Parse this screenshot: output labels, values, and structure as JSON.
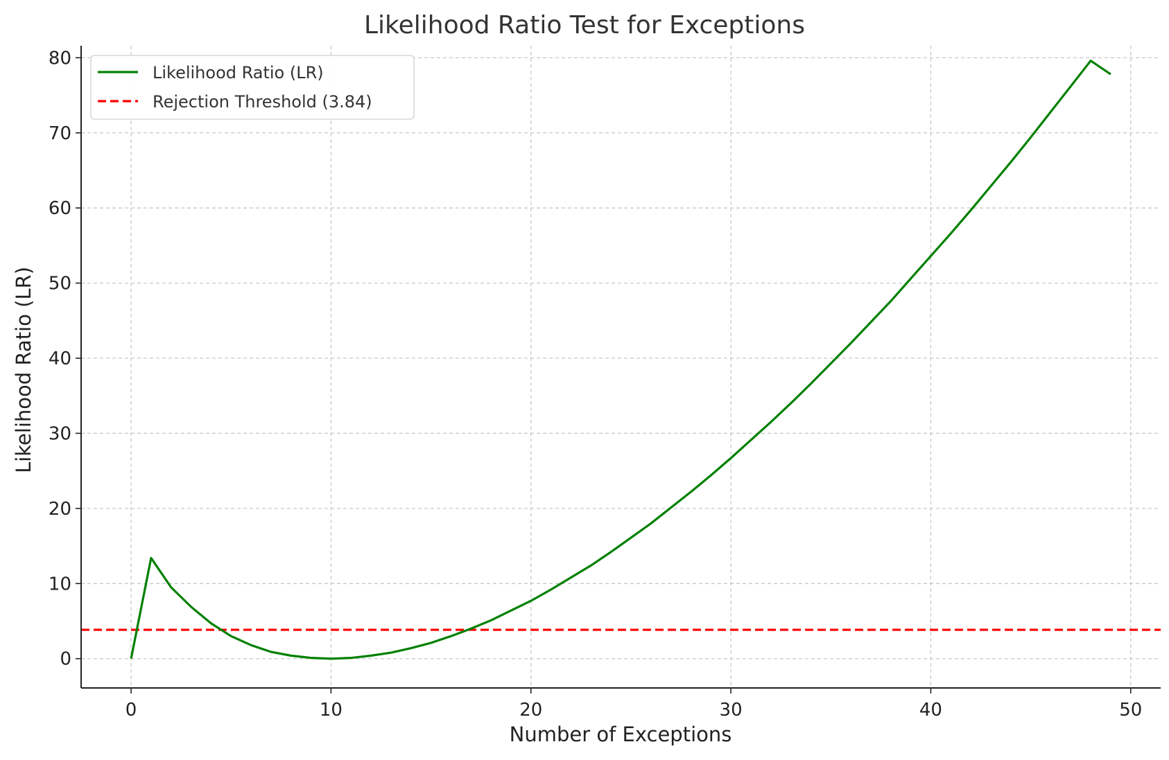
{
  "chart_data": {
    "type": "line",
    "title": "Likelihood Ratio Test for Exceptions",
    "xlabel": "Number of Exceptions",
    "ylabel": "Likelihood Ratio (LR)",
    "xlim": [
      -2.5,
      51.5
    ],
    "ylim": [
      -3.9,
      81.6
    ],
    "xticks": [
      0,
      10,
      20,
      30,
      40,
      50
    ],
    "yticks": [
      0,
      10,
      20,
      30,
      40,
      50,
      60,
      70,
      80
    ],
    "grid": true,
    "legend_position": "top-left",
    "series": [
      {
        "name": "Likelihood Ratio (LR)",
        "color": "#008000",
        "style": "solid",
        "x": [
          0,
          1,
          2,
          3,
          4,
          5,
          6,
          7,
          8,
          9,
          10,
          11,
          12,
          13,
          14,
          15,
          16,
          17,
          18,
          19,
          20,
          21,
          22,
          23,
          24,
          25,
          26,
          27,
          28,
          29,
          30,
          31,
          32,
          33,
          34,
          35,
          36,
          37,
          38,
          39,
          40,
          41,
          42,
          43,
          44,
          45,
          46,
          47,
          48,
          49
        ],
        "y": [
          0,
          13.4,
          9.5,
          6.9,
          4.7,
          3.0,
          1.8,
          0.9,
          0.4,
          0.1,
          0.0,
          0.1,
          0.4,
          0.8,
          1.4,
          2.1,
          3.0,
          4.0,
          5.1,
          6.4,
          7.7,
          9.2,
          10.8,
          12.4,
          14.2,
          16.1,
          18.0,
          20.1,
          22.2,
          24.4,
          26.7,
          29.1,
          31.5,
          34.0,
          36.6,
          39.3,
          42.0,
          44.8,
          47.6,
          50.6,
          53.6,
          56.6,
          59.7,
          62.9,
          66.1,
          69.4,
          72.8,
          76.2,
          79.6,
          77.8
        ]
      },
      {
        "name": "Rejection Threshold (3.84)",
        "color": "#ff0000",
        "style": "dashed",
        "y_constant": 3.84
      }
    ]
  }
}
